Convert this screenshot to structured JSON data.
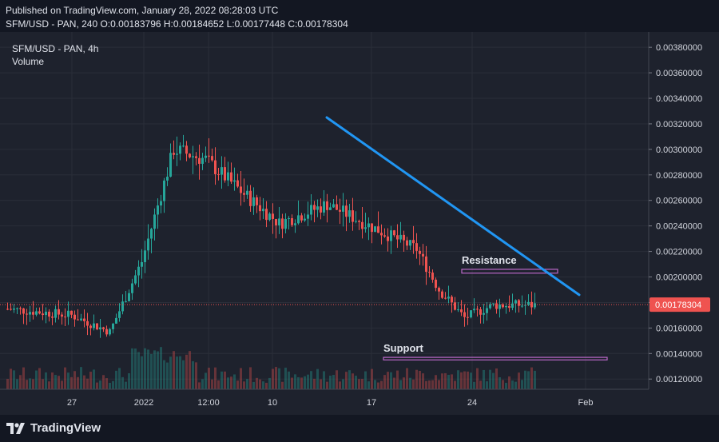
{
  "header": {
    "published": "Published on TradingView.com, January 28, 2022 08:28:03 UTC",
    "ohlc": "SFM/USD - PAN, 240  O:0.00183796 H:0.00184652 L:0.00177448 C:0.00178304"
  },
  "legend": {
    "symbol": "SFM/USD - PAN, 4h",
    "volume": "Volume"
  },
  "footer": {
    "brand": "TradingView"
  },
  "colors": {
    "up": "#26a69a",
    "down": "#ef5350",
    "trendline": "#2196f3",
    "box": "#ba68c8",
    "price_tag": "#ef5350"
  },
  "chart_data": {
    "type": "candlestick",
    "ylim": [
      0.00112,
      0.00392
    ],
    "y_ticks": [
      "0.00380000",
      "0.00360000",
      "0.00340000",
      "0.00320000",
      "0.00300000",
      "0.00280000",
      "0.00260000",
      "0.00240000",
      "0.00220000",
      "0.00200000",
      "0.00180000",
      "0.00160000",
      "0.00140000",
      "0.00120000"
    ],
    "x_ticks": [
      "27",
      "2022",
      "12:00",
      "10",
      "17",
      "24",
      "Feb"
    ],
    "current_price": "0.00178304",
    "anchor_points": [
      {
        "bar": 0,
        "price": 0.00175
      },
      {
        "bar": 20,
        "price": 0.0017
      },
      {
        "bar": 32,
        "price": 0.00157
      },
      {
        "bar": 42,
        "price": 0.00212
      },
      {
        "bar": 52,
        "price": 0.003
      },
      {
        "bar": 62,
        "price": 0.00292
      },
      {
        "bar": 74,
        "price": 0.00265
      },
      {
        "bar": 85,
        "price": 0.00242
      },
      {
        "bar": 100,
        "price": 0.00257
      },
      {
        "bar": 115,
        "price": 0.00238
      },
      {
        "bar": 128,
        "price": 0.00222
      },
      {
        "bar": 135,
        "price": 0.0019
      },
      {
        "bar": 143,
        "price": 0.00168
      },
      {
        "bar": 152,
        "price": 0.00178
      },
      {
        "bar": 165,
        "price": 0.00178
      }
    ],
    "resistance": {
      "label": "Resistance",
      "price_low": 0.00203,
      "price_high": 0.00206
    },
    "support": {
      "label": "Support",
      "price_low": 0.00135,
      "price_high": 0.00137
    },
    "trendline": {
      "start_price": 0.00325,
      "end_price": 0.00186
    }
  }
}
